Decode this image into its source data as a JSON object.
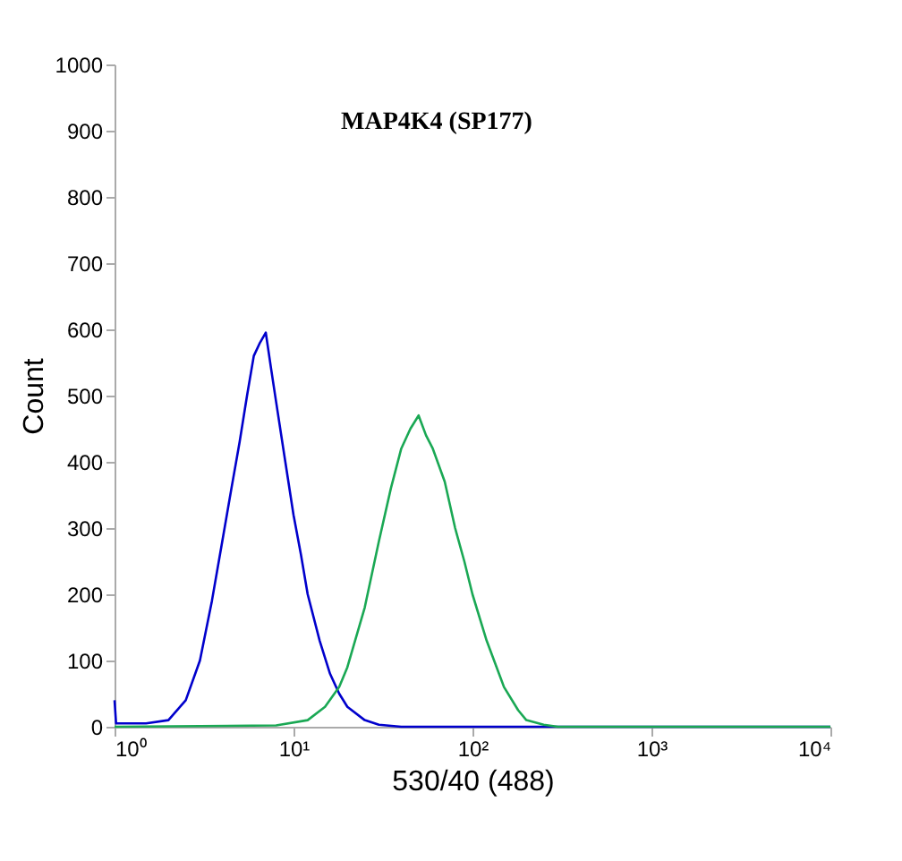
{
  "chart_data": {
    "type": "line",
    "title": "MAP4K4 (SP177)",
    "xlabel": "530/40 (488)",
    "ylabel": "Count",
    "log": "x",
    "grid": false,
    "legend": false,
    "marker": "none",
    "line_style": "solid",
    "xlim": [
      1,
      10000
    ],
    "xticks": [
      {
        "value": 1,
        "label": "10⁰"
      },
      {
        "value": 10,
        "label": "10¹"
      },
      {
        "value": 100,
        "label": "10²"
      },
      {
        "value": 1000,
        "label": "10³"
      },
      {
        "value": 10000,
        "label": "10⁴"
      }
    ],
    "ylim": [
      0,
      1000
    ],
    "yticks": [
      0,
      100,
      200,
      300,
      400,
      500,
      600,
      700,
      800,
      900,
      1000
    ],
    "series": [
      {
        "color": "#0000cc",
        "x": [
          1,
          1.02,
          1.5,
          2,
          2.5,
          3,
          3.5,
          4,
          4.5,
          5,
          5.5,
          6,
          6.5,
          7,
          7.5,
          8,
          9,
          10,
          11,
          12,
          14,
          16,
          18,
          20,
          25,
          30,
          40,
          100,
          10000
        ],
        "values": [
          40,
          5,
          5,
          10,
          40,
          100,
          190,
          280,
          360,
          430,
          500,
          560,
          580,
          595,
          540,
          490,
          400,
          320,
          260,
          200,
          130,
          80,
          50,
          30,
          10,
          3,
          0,
          0,
          0
        ]
      },
      {
        "color": "#1aa854",
        "x": [
          1,
          8,
          12,
          15,
          18,
          20,
          25,
          30,
          35,
          40,
          45,
          50,
          55,
          60,
          70,
          80,
          90,
          100,
          120,
          150,
          180,
          200,
          250,
          300,
          10000
        ],
        "values": [
          0,
          2,
          10,
          30,
          60,
          90,
          180,
          280,
          360,
          420,
          450,
          470,
          440,
          420,
          370,
          300,
          250,
          200,
          130,
          60,
          25,
          10,
          3,
          0,
          0
        ]
      }
    ]
  }
}
